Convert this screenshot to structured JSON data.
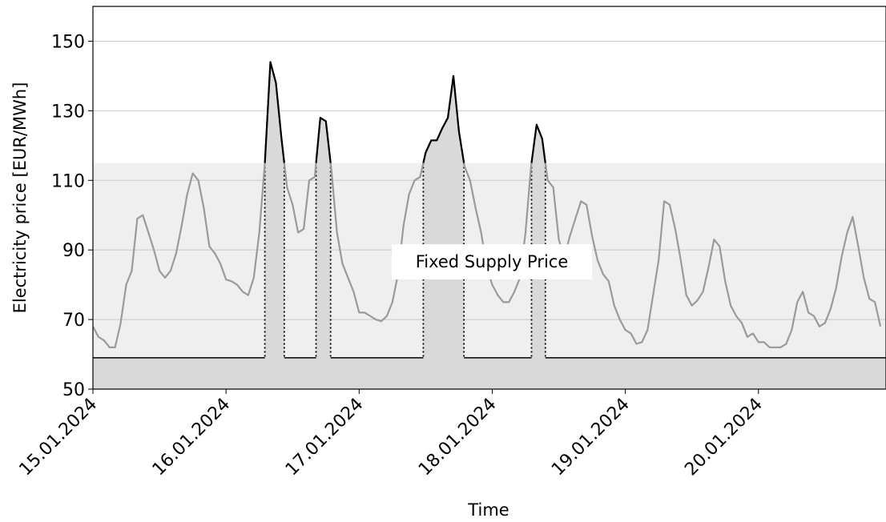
{
  "chart_data": {
    "type": "line",
    "xlabel": "Time",
    "ylabel": "Electricity price [EUR/MWh]",
    "ylim": [
      50,
      160
    ],
    "yticks": [
      50,
      70,
      90,
      110,
      130,
      150
    ],
    "xlim": [
      0,
      143
    ],
    "xtick_positions": [
      0,
      24,
      48,
      72,
      96,
      120
    ],
    "xticks": [
      "15.01.2024",
      "16.01.2024",
      "17.01.2024",
      "18.01.2024",
      "19.01.2024",
      "20.01.2024"
    ],
    "grid": "horizontal",
    "annotation": "Fixed Supply Price",
    "band": {
      "ymin": 50,
      "ymax": 115
    },
    "baseline": 59,
    "threshold": 115,
    "series": [
      {
        "values": [
          68,
          65,
          64,
          62,
          62,
          69,
          80,
          84,
          99,
          100,
          95,
          90,
          84,
          82,
          84,
          89,
          97,
          106,
          112,
          110,
          102,
          91,
          89,
          86,
          81.5,
          81,
          80,
          78,
          77,
          82,
          95,
          115,
          144,
          138,
          122,
          108,
          103,
          95,
          96,
          110,
          111,
          128,
          127,
          113,
          95,
          86,
          82,
          78,
          72,
          72,
          71,
          70,
          69.5,
          71,
          75,
          83,
          97,
          106,
          110,
          111,
          118,
          121.5,
          121.5,
          125,
          128,
          140,
          124,
          114,
          110,
          102,
          95,
          85,
          80,
          77,
          75,
          75,
          78,
          82,
          95,
          114,
          126,
          122,
          110,
          108,
          93,
          88,
          94,
          99,
          104,
          103,
          94,
          87,
          83,
          81,
          74,
          70,
          67,
          66,
          63,
          63.5,
          67,
          77,
          87,
          104,
          103,
          96,
          87,
          77,
          74,
          75.5,
          78,
          85,
          93,
          91,
          81,
          74,
          71,
          69,
          65,
          66,
          63.5,
          63.5,
          62,
          62,
          62,
          63,
          67,
          75,
          78,
          72,
          71,
          68,
          69,
          73,
          79,
          88,
          95,
          99.5,
          91,
          82,
          76,
          75,
          68
        ]
      }
    ]
  }
}
